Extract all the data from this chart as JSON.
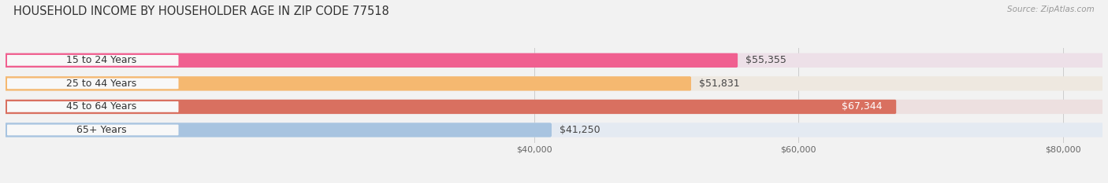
{
  "title": "HOUSEHOLD INCOME BY HOUSEHOLDER AGE IN ZIP CODE 77518",
  "source": "Source: ZipAtlas.com",
  "categories": [
    "15 to 24 Years",
    "25 to 44 Years",
    "45 to 64 Years",
    "65+ Years"
  ],
  "values": [
    55355,
    51831,
    67344,
    41250
  ],
  "labels": [
    "$55,355",
    "$51,831",
    "$67,344",
    "$41,250"
  ],
  "bar_colors": [
    "#f06090",
    "#f5b870",
    "#d97060",
    "#a8c4e0"
  ],
  "bar_bg_colors": [
    "#ede0e8",
    "#eee8e0",
    "#ede0e0",
    "#e4eaf2"
  ],
  "label_bg_color": "#f8f8f8",
  "xmin": 0,
  "xmax": 83000,
  "data_xstart": 0,
  "xticks": [
    40000,
    60000,
    80000
  ],
  "xticklabels": [
    "$40,000",
    "$60,000",
    "$80,000"
  ],
  "bg_color": "#f2f2f2",
  "title_fontsize": 10.5,
  "source_fontsize": 7.5,
  "label_fontsize": 9,
  "cat_fontsize": 9,
  "tick_fontsize": 8,
  "bar_height": 0.62,
  "bar_gap": 0.38,
  "value_label_color_inside": "#ffffff",
  "value_label_color_outside": "#555555",
  "inside_threshold": 67344
}
